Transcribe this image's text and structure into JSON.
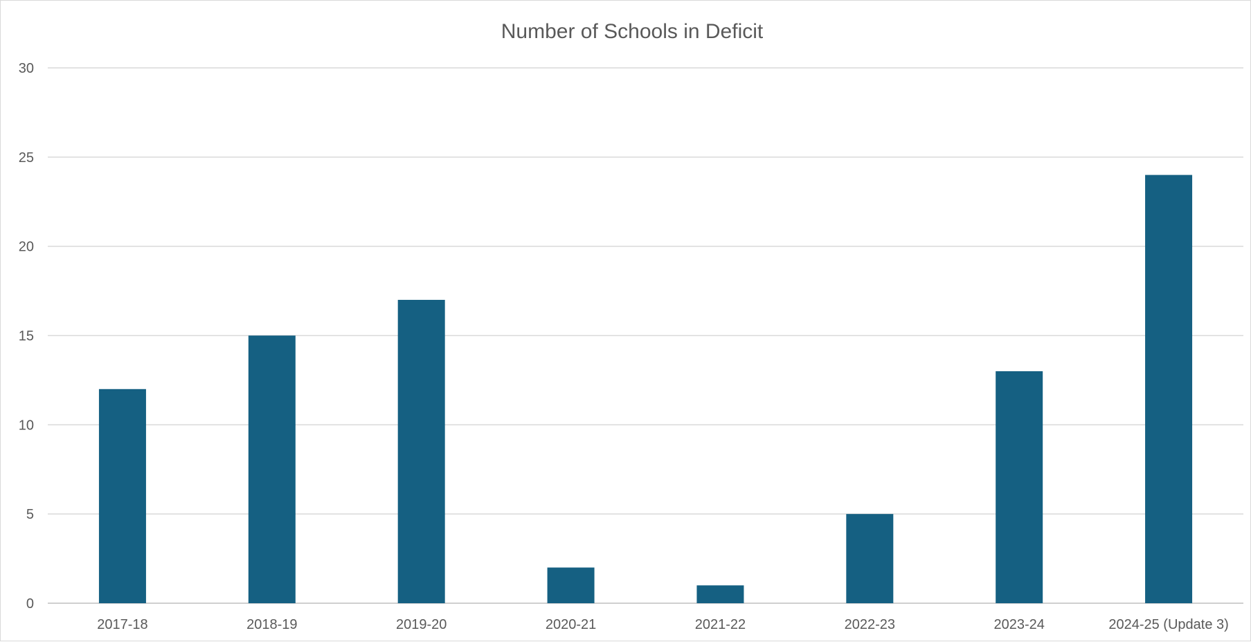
{
  "chart_data": {
    "type": "bar",
    "title": "Number of Schools in Deficit",
    "xlabel": "",
    "ylabel": "",
    "categories": [
      "2017-18",
      "2018-19",
      "2019-20",
      "2020-21",
      "2021-22",
      "2022-23",
      "2023-24",
      "2024-25 (Update 3)"
    ],
    "values": [
      12,
      15,
      17,
      2,
      1,
      5,
      13,
      24
    ],
    "ylim": [
      0,
      30
    ],
    "yticks": [
      0,
      5,
      10,
      15,
      20,
      25,
      30
    ],
    "grid": true,
    "legend": "none",
    "bar_color": "#156082"
  }
}
